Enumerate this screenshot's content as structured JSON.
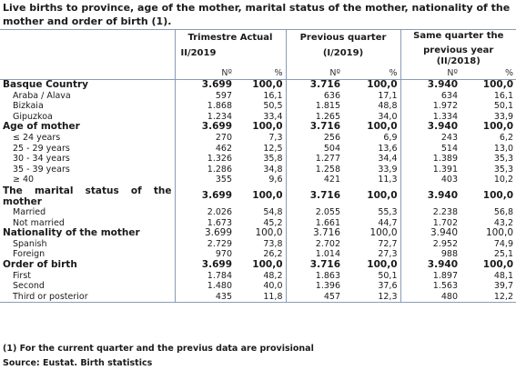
{
  "title": "Live births to province, age of the mother, marital status of the mother, nationality of the mother and order of birth (1).",
  "headers": {
    "q1_line1": "Trimestre Actual",
    "q1_line2": "II/2019",
    "q2_line1": "Previous quarter",
    "q2_line2": "(I/2019)",
    "q3_line1": "Same quarter the",
    "q3_line2": "previous year",
    "q3_line3": "(II/2018)",
    "n_label": "Nº",
    "pct_label": "%"
  },
  "rows": [
    {
      "label": "Basque Country",
      "type": "group",
      "values": [
        "3.699",
        "100,0",
        "3.716",
        "100,0",
        "3.940",
        "100,0"
      ]
    },
    {
      "label": "Araba / Álava",
      "type": "sub",
      "values": [
        "597",
        "16,1",
        "636",
        "17,1",
        "634",
        "16,1"
      ]
    },
    {
      "label": "Bizkaia",
      "type": "sub",
      "values": [
        "1.868",
        "50,5",
        "1.815",
        "48,8",
        "1.972",
        "50,1"
      ]
    },
    {
      "label": "Gipuzkoa",
      "type": "sub",
      "values": [
        "1.234",
        "33,4",
        "1.265",
        "34,0",
        "1.334",
        "33,9"
      ]
    },
    {
      "label": "Age of mother",
      "type": "group",
      "values": [
        "3.699",
        "100,0",
        "3.716",
        "100,0",
        "3.940",
        "100,0"
      ]
    },
    {
      "label": "≤ 24 years",
      "type": "sub",
      "values": [
        "270",
        "7,3",
        "256",
        "6,9",
        "243",
        "6,2"
      ]
    },
    {
      "label": "25 - 29 years",
      "type": "sub",
      "values": [
        "462",
        "12,5",
        "504",
        "13,6",
        "514",
        "13,0"
      ]
    },
    {
      "label": "30 - 34 years",
      "type": "sub",
      "values": [
        "1.326",
        "35,8",
        "1.277",
        "34,4",
        "1.389",
        "35,3"
      ]
    },
    {
      "label": "35 - 39 years",
      "type": "sub",
      "values": [
        "1.286",
        "34,8",
        "1.258",
        "33,9",
        "1.391",
        "35,3"
      ]
    },
    {
      "label": "≥ 40",
      "type": "sub",
      "values": [
        "355",
        "9,6",
        "421",
        "11,3",
        "403",
        "10,2"
      ]
    },
    {
      "label": "The marital status of the mother",
      "type": "group-tall",
      "values": [
        "3.699",
        "100,0",
        "3.716",
        "100,0",
        "3.940",
        "100,0"
      ]
    },
    {
      "label": "Married",
      "type": "sub",
      "values": [
        "2.026",
        "54,8",
        "2.055",
        "55,3",
        "2.238",
        "56,8"
      ]
    },
    {
      "label": "Not married",
      "type": "sub",
      "values": [
        "1.673",
        "45,2",
        "1.661",
        "44,7",
        "1.702",
        "43,2"
      ]
    },
    {
      "label": "Nationality of the mother",
      "type": "group-plain",
      "values": [
        "3.699",
        "100,0",
        "3.716",
        "100,0",
        "3.940",
        "100,0"
      ]
    },
    {
      "label": "Spanish",
      "type": "sub",
      "values": [
        "2.729",
        "73,8",
        "2.702",
        "72,7",
        "2.952",
        "74,9"
      ]
    },
    {
      "label": "Foreign",
      "type": "sub",
      "values": [
        "970",
        "26,2",
        "1.014",
        "27,3",
        "988",
        "25,1"
      ]
    },
    {
      "label": "Order of birth",
      "type": "group",
      "values": [
        "3.699",
        "100,0",
        "3.716",
        "100,0",
        "3.940",
        "100,0"
      ]
    },
    {
      "label": "First",
      "type": "sub",
      "values": [
        "1.784",
        "48,2",
        "1.863",
        "50,1",
        "1.897",
        "48,1"
      ]
    },
    {
      "label": "Second",
      "type": "sub",
      "values": [
        "1.480",
        "40,0",
        "1.396",
        "37,6",
        "1.563",
        "39,7"
      ]
    },
    {
      "label": "Third or posterior",
      "type": "sub",
      "values": [
        "435",
        "11,8",
        "457",
        "12,3",
        "480",
        "12,2"
      ]
    }
  ],
  "footnote": "(1) For the current quarter and the previus data are provisional",
  "source": "Source: Eustat. Birth statistics"
}
